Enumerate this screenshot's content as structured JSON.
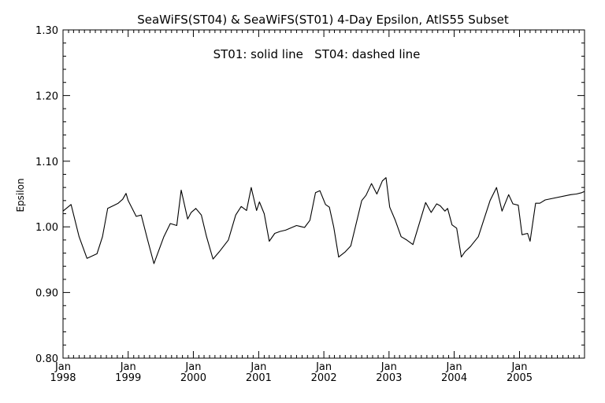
{
  "chart_data": {
    "type": "line",
    "title": "SeaWiFS(ST04) & SeaWiFS(ST01) 4-Day Epsilon, AtlS55 Subset",
    "annotation": "ST01: solid line   ST04: dashed line",
    "xlabel": "",
    "ylabel": "Epsilon",
    "xlim": [
      "1998-01-01",
      "2005-12-31"
    ],
    "ylim": [
      0.8,
      1.3
    ],
    "y_ticks": [
      "0.80",
      "0.90",
      "1.00",
      "1.10",
      "1.20",
      "1.30"
    ],
    "x_ticks": [
      {
        "month": "Jan",
        "year": "1998",
        "date": "1998-01-01"
      },
      {
        "month": "Jan",
        "year": "1999",
        "date": "1999-01-01"
      },
      {
        "month": "Jan",
        "year": "2000",
        "date": "2000-01-01"
      },
      {
        "month": "Jan",
        "year": "2001",
        "date": "2001-01-01"
      },
      {
        "month": "Jan",
        "year": "2002",
        "date": "2002-01-01"
      },
      {
        "month": "Jan",
        "year": "2003",
        "date": "2003-01-01"
      },
      {
        "month": "Jan",
        "year": "2004",
        "date": "2004-01-01"
      },
      {
        "month": "Jan",
        "year": "2005",
        "date": "2005-01-01"
      }
    ],
    "grid": false,
    "series": [
      {
        "line_style": "solid",
        "x": [
          "1998-01-01",
          "1998-02-15",
          "1998-04-01",
          "1998-05-15",
          "1998-07-10",
          "1998-08-10",
          "1998-09-08",
          "1998-10-15",
          "1998-11-06",
          "1998-12-01",
          "1998-12-20",
          "1999-01-01",
          "1999-02-15",
          "1999-03-15",
          "1999-04-20",
          "1999-05-25",
          "1999-07-20",
          "1999-08-25",
          "1999-09-30",
          "1999-10-25",
          "1999-11-30",
          "1999-12-20",
          "2000-01-15",
          "2000-02-15",
          "2000-03-15",
          "2000-04-20",
          "2000-05-25",
          "2000-07-15",
          "2000-08-25",
          "2000-09-25",
          "2000-10-25",
          "2000-11-20",
          "2000-12-20",
          "2001-01-05",
          "2001-02-01",
          "2001-03-01",
          "2001-04-01",
          "2001-05-01",
          "2001-06-01",
          "2001-08-01",
          "2001-09-15",
          "2001-10-15",
          "2001-11-15",
          "2001-12-10",
          "2002-01-10",
          "2002-02-01",
          "2002-02-25",
          "2002-03-25",
          "2002-05-01",
          "2002-06-01",
          "2002-08-01",
          "2002-08-25",
          "2002-09-25",
          "2002-10-25",
          "2002-11-25",
          "2002-12-15",
          "2003-01-05",
          "2003-02-05",
          "2003-03-10",
          "2003-04-10",
          "2003-05-15",
          "2003-07-25",
          "2003-08-25",
          "2003-09-25",
          "2003-10-15",
          "2003-11-10",
          "2003-11-25",
          "2003-12-20",
          "2004-01-15",
          "2004-02-10",
          "2004-03-01",
          "2004-04-01",
          "2004-05-15",
          "2004-07-20",
          "2004-08-25",
          "2004-09-25",
          "2004-11-01",
          "2004-11-25",
          "2004-12-25",
          "2005-01-15",
          "2005-02-15",
          "2005-03-01",
          "2005-04-01",
          "2005-04-25",
          "2005-05-25",
          "2005-10-15",
          "2005-11-15",
          "2005-12-15",
          "2005-12-31"
        ],
        "y": [
          1.024,
          1.034,
          0.985,
          0.952,
          0.959,
          0.985,
          1.028,
          1.033,
          1.036,
          1.042,
          1.051,
          1.04,
          1.016,
          1.018,
          0.98,
          0.944,
          0.985,
          1.005,
          1.002,
          1.056,
          1.012,
          1.022,
          1.028,
          1.018,
          0.985,
          0.951,
          0.962,
          0.98,
          1.018,
          1.031,
          1.025,
          1.06,
          1.025,
          1.038,
          1.02,
          0.978,
          0.99,
          0.993,
          0.995,
          1.002,
          0.999,
          1.01,
          1.052,
          1.055,
          1.034,
          1.03,
          1.0,
          0.954,
          0.962,
          0.971,
          1.04,
          1.048,
          1.066,
          1.05,
          1.07,
          1.075,
          1.03,
          1.01,
          0.985,
          0.98,
          0.973,
          1.037,
          1.022,
          1.035,
          1.032,
          1.024,
          1.028,
          1.003,
          0.998,
          0.954,
          0.962,
          0.97,
          0.985,
          1.04,
          1.06,
          1.024,
          1.049,
          1.035,
          1.033,
          0.988,
          0.99,
          0.978,
          1.036,
          1.036,
          1.041,
          1.049,
          1.05,
          1.052,
          1.054
        ]
      }
    ]
  }
}
